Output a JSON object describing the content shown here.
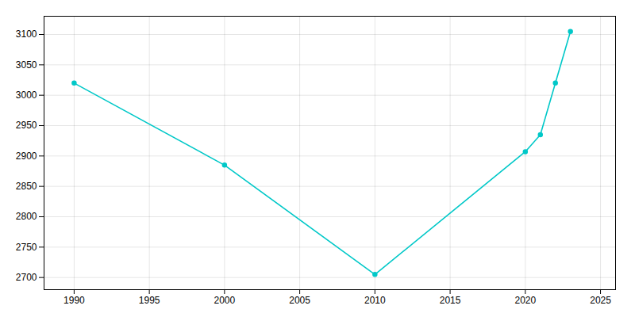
{
  "chart_data": {
    "type": "line",
    "x": [
      1990,
      2000,
      2010,
      2020,
      2021,
      2022,
      2023
    ],
    "values": [
      3020,
      2885,
      2705,
      2907,
      2935,
      3020,
      3105
    ],
    "color": "#00c8c8",
    "marker": "circle",
    "xlim": [
      1988,
      2026
    ],
    "ylim": [
      2680,
      3130
    ],
    "xticks": [
      1990,
      1995,
      2000,
      2005,
      2010,
      2015,
      2020,
      2025
    ],
    "yticks": [
      2700,
      2750,
      2800,
      2850,
      2900,
      2950,
      3000,
      3050,
      3100
    ],
    "grid": true
  }
}
